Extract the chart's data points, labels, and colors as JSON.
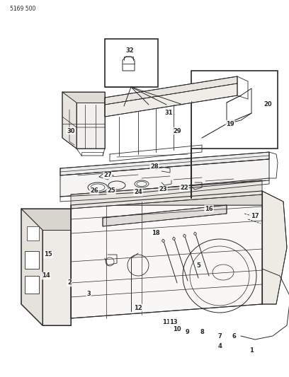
{
  "title": "5169 500",
  "bg": "#f0ede8",
  "lc": "#2a2a2a",
  "fig_w": 4.08,
  "fig_h": 5.33,
  "dpi": 100,
  "labels": [
    [
      "1",
      355,
      495
    ],
    [
      "2",
      98,
      400
    ],
    [
      "3",
      125,
      415
    ],
    [
      "4",
      310,
      490
    ],
    [
      "5",
      280,
      375
    ],
    [
      "6",
      330,
      475
    ],
    [
      "7",
      310,
      475
    ],
    [
      "8",
      285,
      470
    ],
    [
      "9",
      265,
      470
    ],
    [
      "10",
      250,
      465
    ],
    [
      "11",
      235,
      455
    ],
    [
      "12",
      195,
      435
    ],
    [
      "13",
      245,
      455
    ],
    [
      "14",
      65,
      390
    ],
    [
      "15",
      68,
      360
    ],
    [
      "16",
      295,
      295
    ],
    [
      "17",
      360,
      305
    ],
    [
      "18",
      220,
      330
    ],
    [
      "19",
      325,
      175
    ],
    [
      "20",
      378,
      148
    ],
    [
      "22",
      260,
      265
    ],
    [
      "23",
      230,
      268
    ],
    [
      "24",
      195,
      272
    ],
    [
      "25",
      157,
      270
    ],
    [
      "26",
      133,
      270
    ],
    [
      "27",
      152,
      248
    ],
    [
      "28",
      218,
      235
    ],
    [
      "29",
      250,
      185
    ],
    [
      "30",
      100,
      185
    ],
    [
      "31",
      238,
      160
    ],
    [
      "32",
      183,
      72
    ]
  ]
}
